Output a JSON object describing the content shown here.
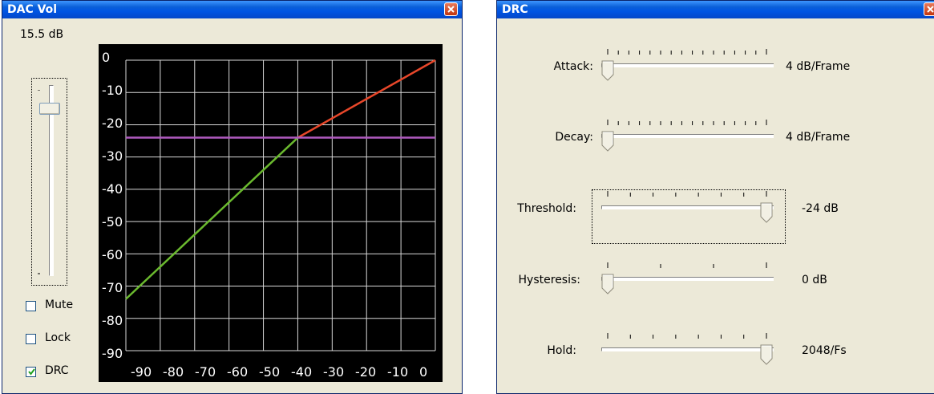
{
  "dac_window": {
    "title": "DAC Vol",
    "db_value": "15.5 dB",
    "volume_slider_level": 0.9,
    "checkboxes": [
      {
        "label": "Mute",
        "checked": false
      },
      {
        "label": "Lock",
        "checked": false
      },
      {
        "label": "DRC",
        "checked": true
      }
    ]
  },
  "chart_data": {
    "type": "line",
    "title": "",
    "xlabel": "",
    "ylabel": "",
    "xlim": [
      -90,
      0
    ],
    "ylim": [
      -90,
      0
    ],
    "x_tick_labels": [
      "-90",
      "-80",
      "-70",
      "-60",
      "-50",
      "-40",
      "-30",
      "-20",
      "-10",
      "0"
    ],
    "y_tick_labels": [
      "0",
      "-10",
      "-20",
      "-30",
      "-40",
      "-50",
      "-60",
      "-70",
      "-80",
      "-90"
    ],
    "grid": true,
    "background": "#000000",
    "series": [
      {
        "color": "#6ab92e",
        "x": [
          -90,
          -40
        ],
        "y": [
          -74,
          -24
        ]
      },
      {
        "color": "#e8472a",
        "x": [
          -40,
          0
        ],
        "y": [
          -24,
          0
        ]
      },
      {
        "color": "#b05abf",
        "x": [
          -90,
          0
        ],
        "y": [
          -24,
          -24
        ]
      }
    ]
  },
  "drc_window": {
    "title": "DRC",
    "rows": [
      {
        "label": "Attack:",
        "value": "4 dB/Frame",
        "position": 0.0,
        "ticks": 16
      },
      {
        "label": "Decay:",
        "value": "4 dB/Frame",
        "position": 0.0,
        "ticks": 16
      },
      {
        "label": "Threshold:",
        "value": "-24 dB",
        "position": 1.0,
        "ticks": 8
      },
      {
        "label": "Hysteresis:",
        "value": "0 dB",
        "position": 0.0,
        "ticks": 4
      },
      {
        "label": "Hold:",
        "value": "2048/Fs",
        "position": 1.0,
        "ticks": 8
      }
    ]
  },
  "colors": {
    "titlebar": "#0054e3",
    "window_bg": "#ece9d8",
    "close_button": "#c2350f"
  }
}
